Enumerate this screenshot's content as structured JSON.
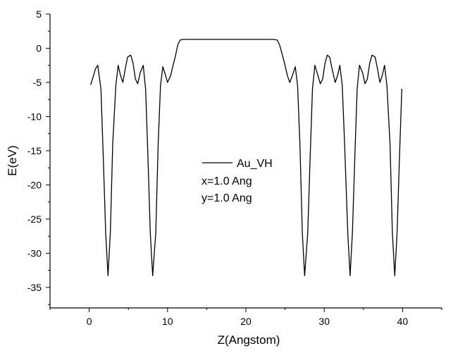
{
  "chart_data": {
    "type": "line",
    "xlabel": "Z(Angstom)",
    "ylabel": "E(eV)",
    "xlim": [
      -5,
      45
    ],
    "ylim": [
      -38,
      5
    ],
    "x_ticks": [
      0,
      10,
      20,
      30,
      40
    ],
    "y_ticks": [
      5,
      0,
      -5,
      -10,
      -15,
      -20,
      -25,
      -30,
      -35
    ],
    "grid": false,
    "legend_position": "center",
    "annotations": [
      "x=1.0 Ang",
      "y=1.0 Ang"
    ],
    "series": [
      {
        "name": "Au_VH",
        "color": "#000000",
        "x": [
          0.2,
          0.5,
          0.8,
          1.1,
          1.5,
          1.8,
          2.1,
          2.4,
          2.7,
          3.0,
          3.4,
          3.7,
          4.0,
          4.3,
          4.6,
          4.9,
          5.3,
          5.6,
          5.9,
          6.2,
          6.5,
          6.9,
          7.2,
          7.5,
          7.8,
          8.1,
          8.5,
          8.8,
          9.1,
          9.4,
          9.7,
          10.0,
          10.4,
          10.7,
          11.0,
          11.3,
          11.6,
          12.0,
          12.3,
          12.6,
          12.9,
          13.2,
          13.5,
          14.0,
          15.0,
          16.0,
          17.0,
          18.0,
          19.0,
          20.0,
          21.0,
          22.0,
          23.0,
          23.5,
          24.0,
          24.3,
          24.7,
          25.0,
          25.3,
          25.6,
          26.0,
          26.3,
          26.6,
          26.9,
          27.2,
          27.5,
          27.9,
          28.2,
          28.5,
          28.8,
          29.1,
          29.5,
          29.8,
          30.1,
          30.4,
          30.7,
          31.0,
          31.4,
          31.7,
          32.0,
          32.3,
          32.6,
          33.0,
          33.3,
          33.6,
          33.9,
          34.2,
          34.5,
          34.9,
          35.2,
          35.5,
          35.8,
          36.1,
          36.5,
          36.8,
          37.1,
          37.4,
          37.7,
          38.0,
          38.4,
          38.7,
          39.0,
          39.3,
          39.6,
          39.9
        ],
        "values": [
          -5.3,
          -4.2,
          -3.0,
          -2.5,
          -6.0,
          -16.0,
          -27.0,
          -33.3,
          -27.0,
          -14.0,
          -5.5,
          -2.5,
          -4.0,
          -5.0,
          -3.0,
          -1.3,
          -1.0,
          -2.2,
          -4.5,
          -5.2,
          -3.6,
          -2.5,
          -6.0,
          -16.0,
          -27.0,
          -33.3,
          -27.0,
          -14.0,
          -5.5,
          -2.7,
          -3.8,
          -5.0,
          -4.0,
          -2.5,
          -1.2,
          0.5,
          1.2,
          1.3,
          1.3,
          1.3,
          1.3,
          1.3,
          1.3,
          1.3,
          1.3,
          1.3,
          1.3,
          1.3,
          1.3,
          1.3,
          1.3,
          1.3,
          1.3,
          1.3,
          1.2,
          0.5,
          -1.2,
          -2.5,
          -4.0,
          -5.0,
          -3.8,
          -2.7,
          -5.5,
          -14.0,
          -27.0,
          -33.3,
          -27.0,
          -16.0,
          -6.0,
          -2.5,
          -3.6,
          -5.2,
          -4.5,
          -2.2,
          -1.0,
          -1.3,
          -3.0,
          -5.0,
          -4.0,
          -2.5,
          -5.5,
          -14.0,
          -27.0,
          -33.3,
          -27.0,
          -16.0,
          -6.0,
          -2.5,
          -3.6,
          -5.2,
          -4.5,
          -2.2,
          -1.0,
          -1.3,
          -3.0,
          -5.0,
          -4.0,
          -2.5,
          -5.5,
          -14.0,
          -27.0,
          -33.3,
          -27.0,
          -16.0,
          -6.0
        ]
      }
    ]
  }
}
